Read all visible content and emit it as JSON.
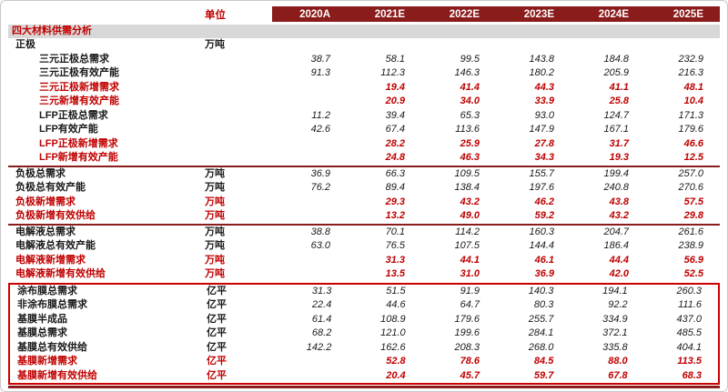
{
  "colors": {
    "header_bg": "#8b1c1c",
    "header_text": "#ffffff",
    "accent_red": "#c00000",
    "section_title_bg": "#d8d8d8",
    "divider": "#8b1c1c",
    "highlight_box": "#cc0000"
  },
  "chart_data": {
    "type": "table",
    "title": "四大材料供需分析",
    "unit_header": "单位",
    "columns": [
      "2020A",
      "2021E",
      "2022E",
      "2023E",
      "2024E",
      "2025E"
    ],
    "sections": [
      {
        "id": "cathode",
        "highlighted": false,
        "rows": [
          {
            "label": "正极",
            "unit": "万吨",
            "indent": 0,
            "color": "black",
            "values": [
              "",
              "",
              "",
              "",
              "",
              ""
            ]
          },
          {
            "label": "三元正极总需求",
            "unit": "",
            "indent": 1,
            "color": "black",
            "values": [
              "38.7",
              "58.1",
              "99.5",
              "143.8",
              "184.8",
              "232.9"
            ]
          },
          {
            "label": "三元正极有效产能",
            "unit": "",
            "indent": 1,
            "color": "black",
            "values": [
              "91.3",
              "112.3",
              "146.3",
              "180.2",
              "205.9",
              "216.3"
            ]
          },
          {
            "label": "三元正极新增需求",
            "unit": "",
            "indent": 1,
            "color": "red",
            "values": [
              "",
              "19.4",
              "41.4",
              "44.3",
              "41.1",
              "48.1"
            ]
          },
          {
            "label": "三元新增有效产能",
            "unit": "",
            "indent": 1,
            "color": "red",
            "values": [
              "",
              "20.9",
              "34.0",
              "33.9",
              "25.8",
              "10.4"
            ]
          },
          {
            "label": "LFP正极总需求",
            "unit": "",
            "indent": 1,
            "color": "black",
            "values": [
              "11.2",
              "39.4",
              "65.3",
              "93.0",
              "124.7",
              "171.3"
            ]
          },
          {
            "label": "LFP有效产能",
            "unit": "",
            "indent": 1,
            "color": "black",
            "values": [
              "42.6",
              "67.4",
              "113.6",
              "147.9",
              "167.1",
              "179.6"
            ]
          },
          {
            "label": "LFP正极新增需求",
            "unit": "",
            "indent": 1,
            "color": "red",
            "values": [
              "",
              "28.2",
              "25.9",
              "27.8",
              "31.7",
              "46.6"
            ]
          },
          {
            "label": "LFP新增有效产能",
            "unit": "",
            "indent": 1,
            "color": "red",
            "values": [
              "",
              "24.8",
              "46.3",
              "34.3",
              "19.3",
              "12.5"
            ]
          }
        ]
      },
      {
        "id": "anode",
        "highlighted": false,
        "rows": [
          {
            "label": "负极总需求",
            "unit": "万吨",
            "indent": 0,
            "color": "black",
            "values": [
              "36.9",
              "66.3",
              "109.5",
              "155.7",
              "199.4",
              "257.0"
            ]
          },
          {
            "label": "负极总有效产能",
            "unit": "万吨",
            "indent": 0,
            "color": "black",
            "values": [
              "76.2",
              "89.4",
              "138.4",
              "197.6",
              "240.8",
              "270.6"
            ]
          },
          {
            "label": "负极新增需求",
            "unit": "万吨",
            "indent": 0,
            "color": "red",
            "values": [
              "",
              "29.3",
              "43.2",
              "46.2",
              "43.8",
              "57.5"
            ]
          },
          {
            "label": "负极新增有效供给",
            "unit": "万吨",
            "indent": 0,
            "color": "red",
            "values": [
              "",
              "13.2",
              "49.0",
              "59.2",
              "43.2",
              "29.8"
            ]
          }
        ]
      },
      {
        "id": "electrolyte",
        "highlighted": false,
        "rows": [
          {
            "label": "电解液总需求",
            "unit": "万吨",
            "indent": 0,
            "color": "black",
            "values": [
              "38.8",
              "70.1",
              "114.2",
              "160.3",
              "204.7",
              "261.6"
            ]
          },
          {
            "label": "电解液总有效产能",
            "unit": "万吨",
            "indent": 0,
            "color": "black",
            "values": [
              "63.0",
              "76.5",
              "107.5",
              "144.4",
              "186.4",
              "238.9"
            ]
          },
          {
            "label": "电解液新增需求",
            "unit": "万吨",
            "indent": 0,
            "color": "red",
            "values": [
              "",
              "31.3",
              "44.1",
              "46.1",
              "44.4",
              "56.9"
            ]
          },
          {
            "label": "电解液新增有效供给",
            "unit": "万吨",
            "indent": 0,
            "color": "red",
            "values": [
              "",
              "13.5",
              "31.0",
              "36.9",
              "42.0",
              "52.5"
            ]
          }
        ]
      },
      {
        "id": "separator",
        "highlighted": true,
        "rows": [
          {
            "label": "涂布膜总需求",
            "unit": "亿平",
            "indent": 0,
            "color": "black",
            "values": [
              "31.3",
              "51.5",
              "91.9",
              "140.3",
              "194.1",
              "260.3"
            ]
          },
          {
            "label": "非涂布膜总需求",
            "unit": "亿平",
            "indent": 0,
            "color": "black",
            "values": [
              "22.4",
              "44.6",
              "64.7",
              "80.3",
              "92.2",
              "111.6"
            ]
          },
          {
            "label": "基膜半成品",
            "unit": "亿平",
            "indent": 0,
            "color": "black",
            "values": [
              "61.4",
              "108.9",
              "179.6",
              "255.7",
              "334.9",
              "437.0"
            ]
          },
          {
            "label": "基膜总需求",
            "unit": "亿平",
            "indent": 0,
            "color": "black",
            "values": [
              "68.2",
              "121.0",
              "199.6",
              "284.1",
              "372.1",
              "485.5"
            ]
          },
          {
            "label": "基膜总有效供给",
            "unit": "亿平",
            "indent": 0,
            "color": "black",
            "values": [
              "142.2",
              "162.6",
              "208.3",
              "268.0",
              "335.8",
              "404.1"
            ]
          },
          {
            "label": "基膜新增需求",
            "unit": "亿平",
            "indent": 0,
            "color": "red",
            "values": [
              "",
              "52.8",
              "78.6",
              "84.5",
              "88.0",
              "113.5"
            ]
          },
          {
            "label": "基膜新增有效供给",
            "unit": "亿平",
            "indent": 0,
            "color": "red",
            "values": [
              "",
              "20.4",
              "45.7",
              "59.7",
              "67.8",
              "68.3"
            ]
          }
        ]
      }
    ]
  }
}
